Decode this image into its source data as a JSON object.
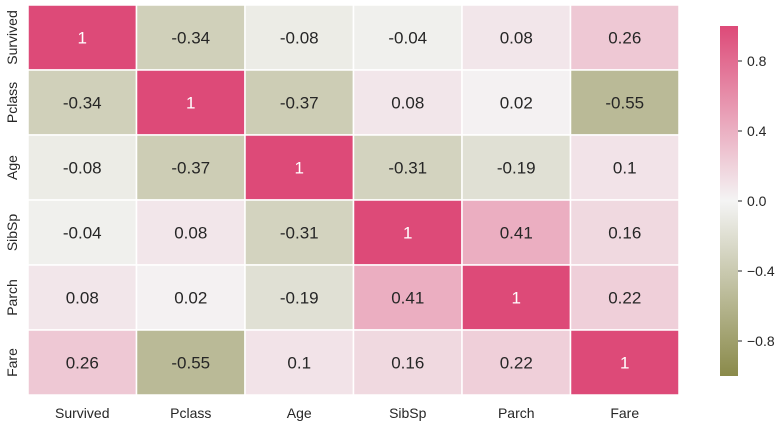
{
  "chart_data": {
    "type": "heatmap",
    "rows": [
      "Survived",
      "Pclass",
      "Age",
      "SibSp",
      "Parch",
      "Fare"
    ],
    "columns": [
      "Survived",
      "Pclass",
      "Age",
      "SibSp",
      "Parch",
      "Fare"
    ],
    "values": [
      [
        1,
        -0.34,
        -0.08,
        -0.04,
        0.08,
        0.26
      ],
      [
        -0.34,
        1,
        -0.37,
        0.08,
        0.02,
        -0.55
      ],
      [
        -0.08,
        -0.37,
        1,
        -0.31,
        -0.19,
        0.1
      ],
      [
        -0.04,
        0.08,
        -0.31,
        1,
        0.41,
        0.16
      ],
      [
        0.08,
        0.02,
        -0.19,
        0.41,
        1,
        0.22
      ],
      [
        0.26,
        -0.55,
        0.1,
        0.16,
        0.22,
        1
      ]
    ],
    "vmin": -1,
    "vmax": 1,
    "colorbar": {
      "ticks": [
        0.8,
        0.4,
        0.0,
        -0.4,
        -0.8
      ],
      "tick_labels": [
        "0.8",
        "0.4",
        "0.0",
        "−0.4",
        "−0.8"
      ]
    },
    "colors": {
      "negative_end": "#8a8a4a",
      "center": "#f4f4f4",
      "positive_end": "#dd4a78"
    },
    "title": "",
    "xlabel": "",
    "ylabel": ""
  }
}
